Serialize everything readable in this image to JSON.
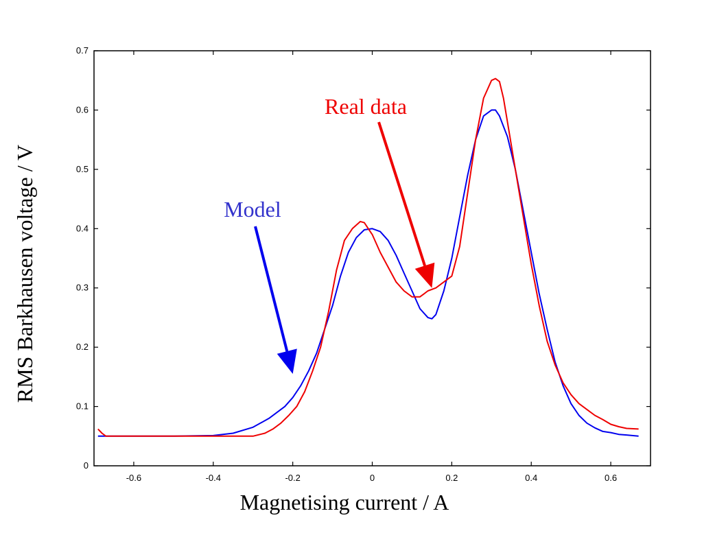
{
  "chart_data": {
    "type": "line",
    "title": "",
    "xlabel": "Magnetising current / A",
    "ylabel": "RMS Barkhausen voltage / V",
    "xlim": [
      -0.7,
      0.7
    ],
    "ylim": [
      0,
      0.7
    ],
    "xticks": [
      -0.6,
      -0.4,
      -0.2,
      0,
      0.2,
      0.4,
      0.6
    ],
    "xtick_labels": [
      "-0.6",
      "-0.4",
      "-0.2",
      "0",
      "0.2",
      "0.4",
      "0.6"
    ],
    "yticks": [
      0,
      0.1,
      0.2,
      0.3,
      0.4,
      0.5,
      0.6,
      0.7
    ],
    "ytick_labels": [
      "0",
      "0.1",
      "0.2",
      "0.3",
      "0.4",
      "0.5",
      "0.6",
      "0.7"
    ],
    "grid": false,
    "series": [
      {
        "name": "Model",
        "color": "#0000ee",
        "x": [
          -0.69,
          -0.6,
          -0.5,
          -0.4,
          -0.35,
          -0.3,
          -0.26,
          -0.22,
          -0.2,
          -0.18,
          -0.16,
          -0.14,
          -0.12,
          -0.1,
          -0.08,
          -0.06,
          -0.04,
          -0.02,
          0.0,
          0.02,
          0.04,
          0.06,
          0.08,
          0.1,
          0.12,
          0.14,
          0.15,
          0.16,
          0.18,
          0.2,
          0.22,
          0.24,
          0.26,
          0.28,
          0.3,
          0.31,
          0.32,
          0.34,
          0.36,
          0.38,
          0.4,
          0.42,
          0.44,
          0.46,
          0.48,
          0.5,
          0.52,
          0.54,
          0.56,
          0.58,
          0.6,
          0.62,
          0.64,
          0.67
        ],
        "y": [
          0.05,
          0.05,
          0.05,
          0.051,
          0.055,
          0.065,
          0.08,
          0.1,
          0.115,
          0.135,
          0.16,
          0.19,
          0.23,
          0.27,
          0.32,
          0.36,
          0.385,
          0.398,
          0.4,
          0.395,
          0.38,
          0.355,
          0.325,
          0.295,
          0.265,
          0.25,
          0.248,
          0.255,
          0.295,
          0.35,
          0.42,
          0.49,
          0.55,
          0.59,
          0.6,
          0.6,
          0.59,
          0.555,
          0.5,
          0.43,
          0.36,
          0.29,
          0.23,
          0.175,
          0.135,
          0.105,
          0.085,
          0.072,
          0.064,
          0.058,
          0.056,
          0.053,
          0.052,
          0.05
        ]
      },
      {
        "name": "Real data",
        "color": "#ee0000",
        "x": [
          -0.69,
          -0.68,
          -0.67,
          -0.6,
          -0.5,
          -0.4,
          -0.35,
          -0.3,
          -0.27,
          -0.25,
          -0.23,
          -0.21,
          -0.19,
          -0.17,
          -0.15,
          -0.13,
          -0.11,
          -0.09,
          -0.07,
          -0.05,
          -0.03,
          -0.02,
          -0.01,
          0.0,
          0.02,
          0.04,
          0.06,
          0.08,
          0.1,
          0.12,
          0.13,
          0.14,
          0.16,
          0.18,
          0.2,
          0.22,
          0.24,
          0.26,
          0.28,
          0.3,
          0.31,
          0.32,
          0.33,
          0.34,
          0.36,
          0.38,
          0.4,
          0.42,
          0.44,
          0.46,
          0.48,
          0.5,
          0.52,
          0.54,
          0.56,
          0.58,
          0.6,
          0.62,
          0.64,
          0.67
        ],
        "y": [
          0.062,
          0.055,
          0.05,
          0.05,
          0.05,
          0.05,
          0.05,
          0.05,
          0.055,
          0.062,
          0.072,
          0.085,
          0.1,
          0.125,
          0.16,
          0.2,
          0.26,
          0.33,
          0.38,
          0.4,
          0.412,
          0.41,
          0.4,
          0.39,
          0.36,
          0.335,
          0.31,
          0.295,
          0.285,
          0.285,
          0.29,
          0.295,
          0.3,
          0.31,
          0.32,
          0.37,
          0.46,
          0.55,
          0.62,
          0.65,
          0.653,
          0.648,
          0.62,
          0.58,
          0.5,
          0.42,
          0.34,
          0.27,
          0.21,
          0.17,
          0.14,
          0.12,
          0.105,
          0.095,
          0.085,
          0.078,
          0.07,
          0.066,
          0.063,
          0.062
        ]
      }
    ],
    "annotations": [
      {
        "text": "Model",
        "color": "#3333cc",
        "point_x": -0.2,
        "point_y": 0.155
      },
      {
        "text": "Real data",
        "color": "#ee0000",
        "point_x": 0.15,
        "point_y": 0.3
      }
    ]
  }
}
